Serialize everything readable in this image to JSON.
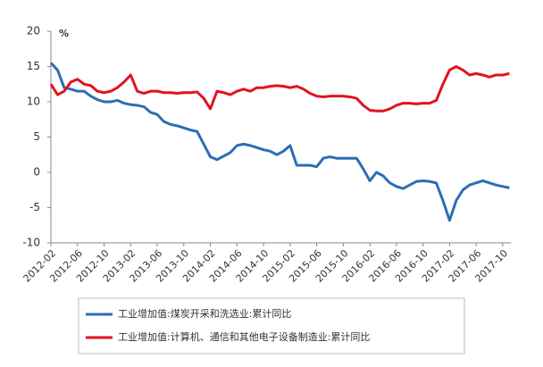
{
  "chart_data": {
    "type": "line",
    "unit": "%",
    "categories": [
      "2012-02",
      null,
      null,
      null,
      "2012-06",
      null,
      null,
      null,
      "2012-10",
      null,
      null,
      null,
      "2013-02",
      null,
      null,
      null,
      "2013-06",
      null,
      null,
      null,
      "2013-10",
      null,
      null,
      null,
      "2014-02",
      null,
      null,
      null,
      "2014-06",
      null,
      null,
      null,
      "2014-10",
      null,
      null,
      null,
      "2015-02",
      null,
      null,
      null,
      "2015-06",
      null,
      null,
      null,
      "2015-10",
      null,
      null,
      null,
      "2016-02",
      null,
      null,
      null,
      "2016-06",
      null,
      null,
      null,
      "2016-10",
      null,
      null,
      null,
      "2017-02",
      null,
      null,
      null,
      "2017-06",
      null,
      null,
      null,
      "2017-10",
      null
    ],
    "series": [
      {
        "name": "工业增加值:煤炭开采和洗选业:累计同比",
        "color": "#2e6db4",
        "values": [
          15.5,
          14.5,
          12,
          11.8,
          11.5,
          11.5,
          10.8,
          10.3,
          10,
          10,
          10.2,
          9.8,
          9.6,
          9.5,
          9.3,
          8.5,
          8.2,
          7.2,
          6.8,
          6.6,
          6.3,
          6,
          5.8,
          4,
          2.2,
          1.8,
          2.3,
          2.8,
          3.8,
          4,
          3.8,
          3.5,
          3.2,
          3,
          2.5,
          3,
          3.8,
          1,
          1,
          1,
          0.8,
          2,
          2.2,
          2,
          2,
          2,
          2,
          0.5,
          -1.2,
          0,
          -0.5,
          -1.5,
          -2,
          -2.3,
          -1.8,
          -1.3,
          -1.2,
          -1.3,
          -1.5,
          -4,
          -6.8,
          -4,
          -2.5,
          -1.8,
          -1.5,
          -1.2,
          -1.5,
          -1.8,
          -2,
          -2.2
        ]
      },
      {
        "name": "工业增加值:计算机、通信和其他电子设备制造业:累计同比",
        "color": "#e0141e",
        "values": [
          12.5,
          11,
          11.5,
          12.8,
          13.2,
          12.5,
          12.3,
          11.5,
          11.3,
          11.5,
          12,
          12.8,
          13.8,
          11.5,
          11.2,
          11.5,
          11.5,
          11.3,
          11.3,
          11.2,
          11.3,
          11.3,
          11.4,
          10.5,
          9,
          11.5,
          11.3,
          11,
          11.5,
          11.8,
          11.5,
          12,
          12,
          12.2,
          12.3,
          12.2,
          12,
          12.2,
          11.8,
          11.2,
          10.8,
          10.7,
          10.8,
          10.8,
          10.8,
          10.7,
          10.5,
          9.5,
          8.8,
          8.7,
          8.7,
          9,
          9.5,
          9.8,
          9.8,
          9.7,
          9.8,
          9.8,
          10.2,
          12.5,
          14.5,
          15,
          14.5,
          13.8,
          14,
          13.8,
          13.5,
          13.8,
          13.8,
          14
        ]
      }
    ],
    "ylim": [
      -10,
      20
    ],
    "yticks": [
      -10,
      -5,
      0,
      5,
      10,
      15,
      20
    ]
  }
}
